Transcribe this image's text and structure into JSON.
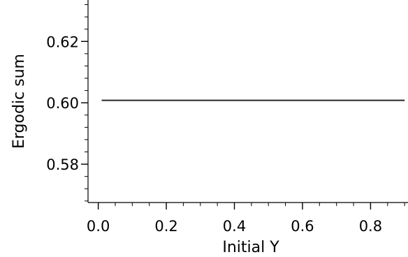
{
  "chart_data": {
    "type": "line",
    "title": "",
    "xlabel": "Initial Y",
    "ylabel": "Ergodic sum",
    "xlim": [
      -0.03,
      0.91
    ],
    "ylim": [
      0.5675,
      0.6335
    ],
    "grid": false,
    "xticks": {
      "major": [
        0.0,
        0.2,
        0.4,
        0.6,
        0.8
      ],
      "major_labels": [
        "0.0",
        "0.2",
        "0.4",
        "0.6",
        "0.8"
      ],
      "minor_step": 0.05
    },
    "yticks": {
      "major": [
        0.58,
        0.6,
        0.62
      ],
      "major_labels": [
        "0.58",
        "0.60",
        "0.62"
      ],
      "minor_step": 0.004
    },
    "series": [
      {
        "x": [
          0.01,
          0.9
        ],
        "y": [
          0.6008,
          0.6008
        ],
        "color": "#333333"
      }
    ]
  }
}
